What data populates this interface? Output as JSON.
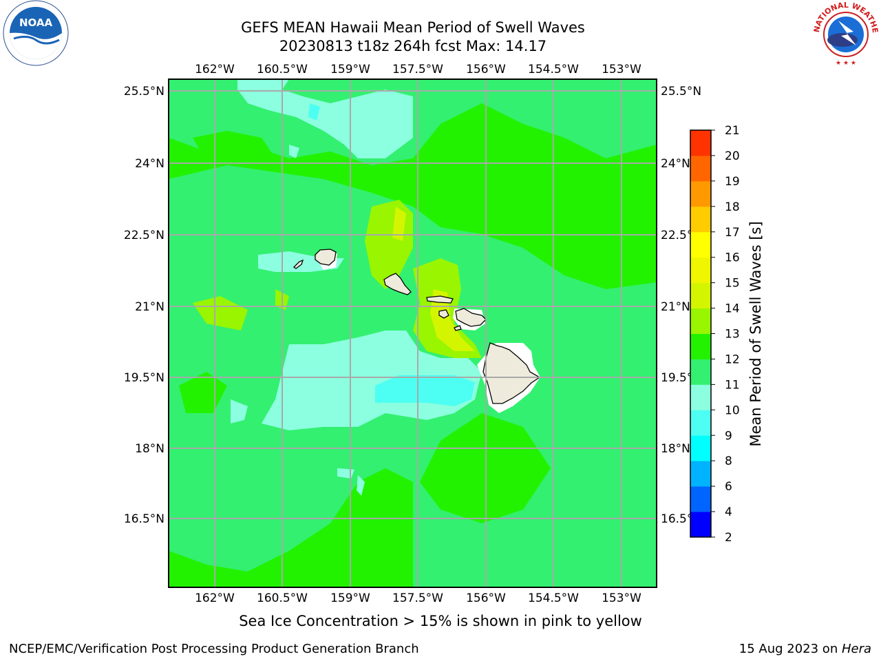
{
  "title_line1": "GEFS MEAN Hawaii Mean Period of Swell Waves",
  "title_line2": "20230813 t18z 264h fcst   Max: 14.17",
  "map": {
    "lon_ticks": [
      "162°W",
      "160.5°W",
      "159°W",
      "157.5°W",
      "156°W",
      "154.5°W",
      "153°W"
    ],
    "lat_ticks": [
      "25.5°N",
      "24°N",
      "22.5°N",
      "21°N",
      "19.5°N",
      "18°N",
      "16.5°N"
    ],
    "background_color": "#22f200",
    "island_fill": "#eeebdc"
  },
  "colorbar": {
    "label": "Mean Period of Swell Waves [s]",
    "ticks": [
      "2",
      "4",
      "6",
      "8",
      "9",
      "10",
      "11",
      "12",
      "13",
      "14",
      "15",
      "16",
      "17",
      "18",
      "19",
      "20",
      "21"
    ],
    "colors": [
      "#0000ff",
      "#0064ff",
      "#00b3ff",
      "#00ffff",
      "#4dfff2",
      "#8cffe0",
      "#33f070",
      "#22f200",
      "#99f500",
      "#d4f500",
      "#f0f500",
      "#ffff00",
      "#ffcc00",
      "#ff9900",
      "#ff6600",
      "#ff3300",
      "#ff0000"
    ]
  },
  "note": "Sea Ice Concentration > 15% is shown in pink to yellow",
  "footer_left": "NCEP/EMC/Verification Post Processing Product Generation Branch",
  "footer_right_date": "15 Aug 2023 on ",
  "footer_right_host": "Hera",
  "logos": {
    "noaa_text": "NOAA",
    "nws_text": "NATIONAL WEATHER SERVICE"
  }
}
